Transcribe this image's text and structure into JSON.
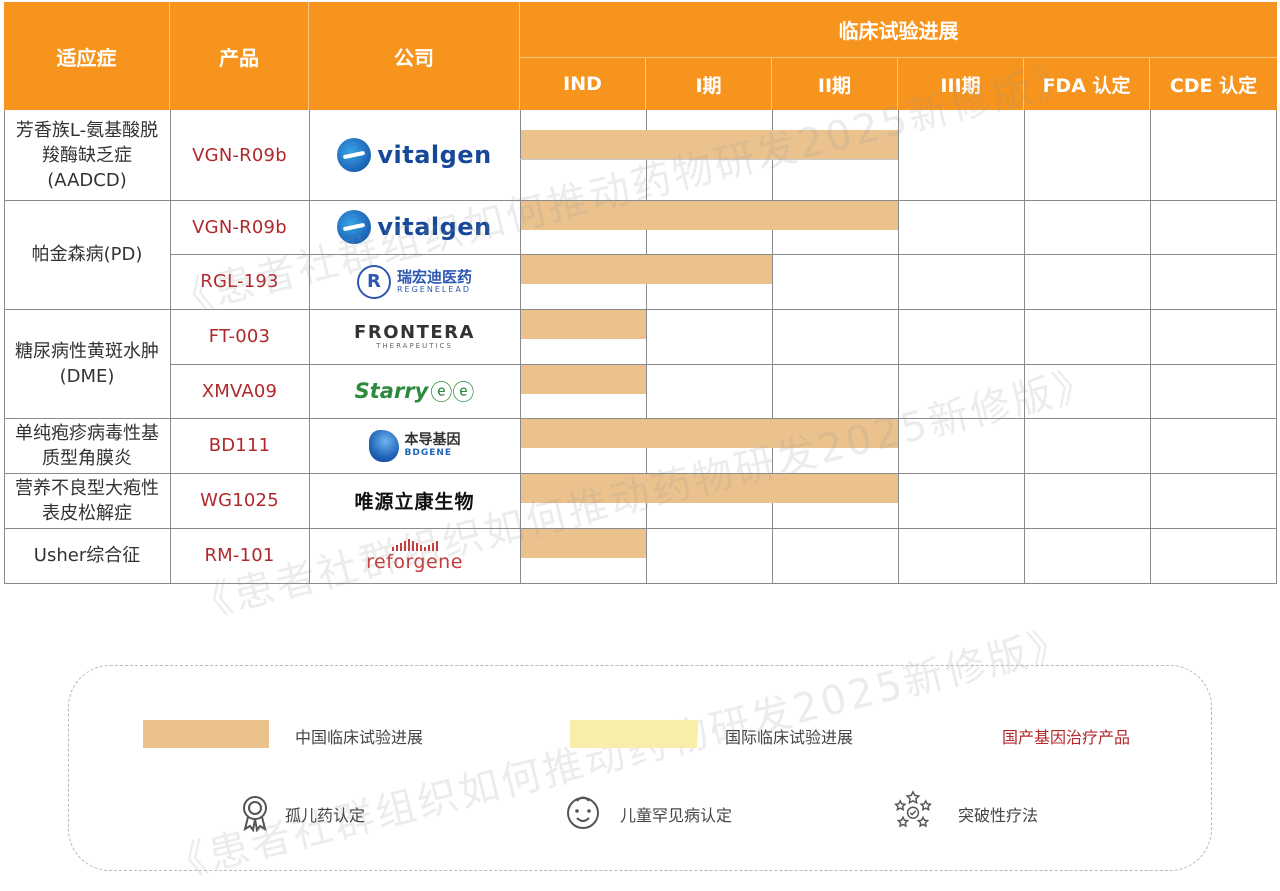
{
  "header": {
    "indication": "适应症",
    "product": "产品",
    "company": "公司",
    "group": "临床试验进展",
    "stages": [
      "IND",
      "I期",
      "II期",
      "III期",
      "FDA 认定",
      "CDE 认定"
    ]
  },
  "rows": [
    {
      "indication": "芳香族L-氨基酸脱羧酶缺乏症(AADCD)",
      "product": "VGN-R09b",
      "company": "vitalgen",
      "china_progress_stages": 3
    },
    {
      "indication": "帕金森病(PD)",
      "product": "VGN-R09b",
      "company": "vitalgen",
      "china_progress_stages": 3
    },
    {
      "indication": "帕金森病(PD)",
      "product": "RGL-193",
      "company": "瑞宏迪医药 REGENELEAD",
      "china_progress_stages": 2
    },
    {
      "indication": "糖尿病性黄斑水肿(DME)",
      "product": "FT-003",
      "company": "FRONTERA THERAPEUTICS",
      "china_progress_stages": 1
    },
    {
      "indication": "糖尿病性黄斑水肿(DME)",
      "product": "XMVA09",
      "company": "Starry",
      "china_progress_stages": 1
    },
    {
      "indication": "单纯疱疹病毒性基质型角膜炎",
      "product": "BD111",
      "company": "本导基因 BDGENE",
      "china_progress_stages": 3
    },
    {
      "indication": "营养不良型大疱性表皮松解症",
      "product": "WG1025",
      "company": "唯源立康生物",
      "china_progress_stages": 3
    },
    {
      "indication": "Usher综合征",
      "product": "RM-101",
      "company": "reforgene",
      "china_progress_stages": 1
    }
  ],
  "indication_labels": {
    "aadcd": "芳香族L-氨基酸脱羧酶缺乏症(AADCD)",
    "pd": "帕金森病(PD)",
    "dme": "糖尿病性黄斑水肿(DME)",
    "hsk": "单纯疱疹病毒性基质型角膜炎",
    "deb": "营养不良型大疱性表皮松解症",
    "usher": "Usher综合征"
  },
  "logos": {
    "vitalgen": "vitalgen",
    "regenelead_zh": "瑞宏迪医药",
    "regenelead_en": "REGENELEAD",
    "frontera_main": "FRONTERA",
    "frontera_sub": "THERAPEUTICS",
    "starry": "Starry",
    "bdgene_zh": "本导基因",
    "bdgene_en": "BDGENE",
    "weiyuan": "唯源立康生物",
    "reforgene": "reforgene"
  },
  "legend": {
    "china_progress": "中国临床试验进展",
    "intl_progress": "国际临床试验进展",
    "domestic_product": "国产基因治疗产品",
    "orphan": "孤儿药认定",
    "pediatric": "儿童罕见病认定",
    "breakthrough": "突破性疗法",
    "china_color": "#ebc28e",
    "intl_color": "#f8eeaa",
    "domestic_text_color": "#b0282c"
  },
  "watermark": "《患者社群组织如何推动药物研发2025新修版》"
}
